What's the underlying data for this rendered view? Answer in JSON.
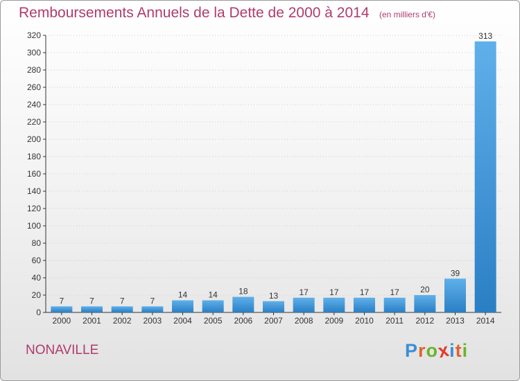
{
  "title": "Remboursements Annuels de la Dette de 2000 à 2014",
  "subtitle": "(en milliers d'€)",
  "location": "NONAVILLE",
  "logo": {
    "letters": [
      "P",
      "r",
      "o",
      "x",
      "i",
      "t",
      "i"
    ],
    "colors": [
      "#3a8fd6",
      "#e0622a",
      "#6ab42d",
      "#e03a2f",
      "#3a8fd6",
      "#e0622a",
      "#6ab42d"
    ]
  },
  "colors": {
    "title": "#b03a6e",
    "bar_light": "#5fb0ea",
    "bar_dark": "#2a7fc4",
    "axis": "#333333",
    "grid": "#cccccc"
  },
  "chart_data": {
    "type": "bar",
    "categories": [
      "2000",
      "2001",
      "2002",
      "2003",
      "2004",
      "2005",
      "2006",
      "2007",
      "2008",
      "2009",
      "2010",
      "2011",
      "2012",
      "2013",
      "2014"
    ],
    "values": [
      7,
      7,
      7,
      7,
      14,
      14,
      18,
      13,
      17,
      17,
      17,
      17,
      20,
      39,
      313
    ],
    "data_labels": [
      "7",
      "7",
      "7",
      "7",
      "14",
      "14",
      "18",
      "13",
      "17",
      "17",
      "17",
      "17",
      "20",
      "39",
      "313"
    ],
    "ylim": [
      0,
      320
    ],
    "yticks": [
      0,
      20,
      40,
      60,
      80,
      100,
      120,
      140,
      160,
      180,
      200,
      220,
      240,
      260,
      280,
      300,
      320
    ]
  }
}
